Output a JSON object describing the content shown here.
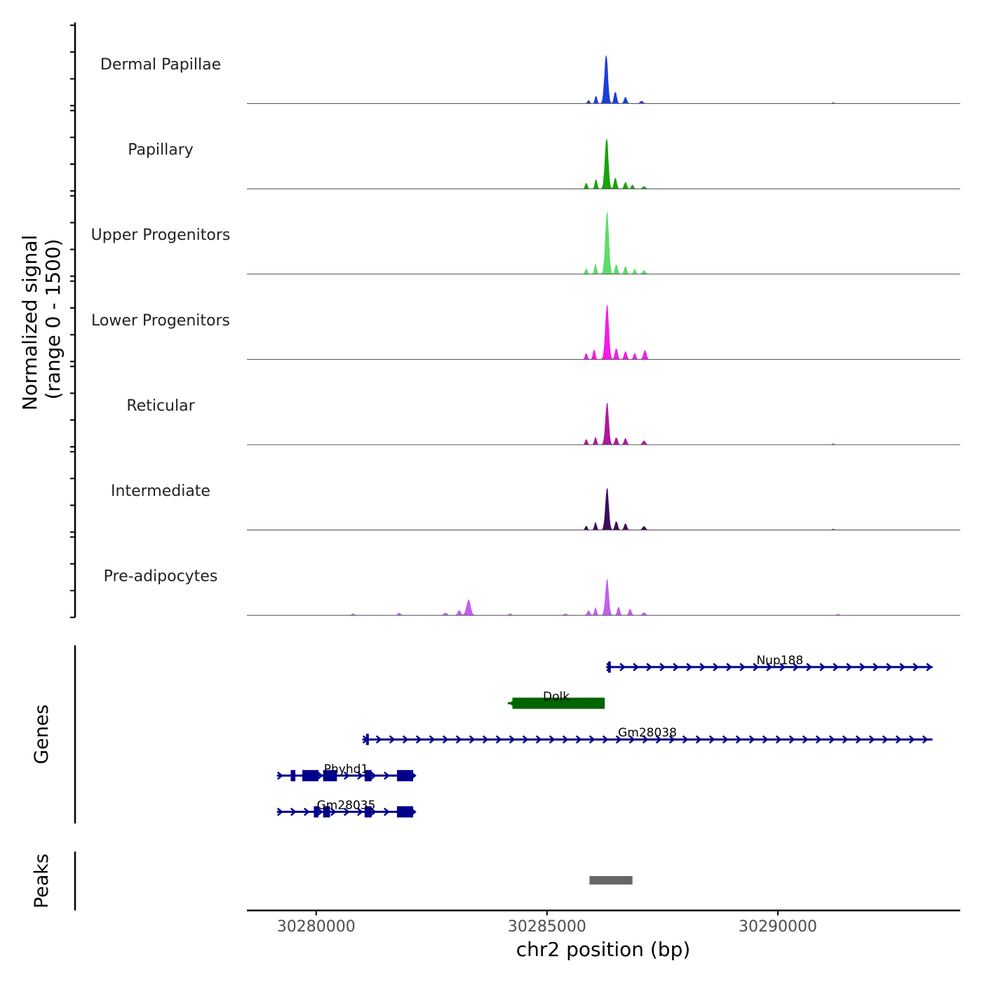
{
  "chart_data": {
    "type": "area",
    "title": "",
    "ylabel_line1": "Normalized signal",
    "ylabel_line2": "(range 0 - 1500)",
    "xlabel": "chr2 position (bp)",
    "chromosome": "chr2",
    "xlim": [
      30278500,
      30293950
    ],
    "ylim": [
      0,
      1500
    ],
    "x_ticks": [
      {
        "value": 30280000,
        "label": "30280000"
      },
      {
        "value": 30285000,
        "label": "30285000"
      },
      {
        "value": 30290000,
        "label": "30290000"
      }
    ],
    "coverage_tracks": [
      {
        "name": "Dermal Papillae",
        "color": "#1a3fd9",
        "peaks": [
          {
            "x": 30286280,
            "y": 1200,
            "w": 90
          },
          {
            "x": 30286480,
            "y": 300,
            "w": 70
          },
          {
            "x": 30286060,
            "y": 180,
            "w": 60
          },
          {
            "x": 30286700,
            "y": 160,
            "w": 70
          },
          {
            "x": 30285900,
            "y": 80,
            "w": 60
          },
          {
            "x": 30287050,
            "y": 60,
            "w": 80
          },
          {
            "x": 30291200,
            "y": 20,
            "w": 60
          }
        ]
      },
      {
        "name": "Papillary",
        "color": "#16a30a",
        "peaks": [
          {
            "x": 30286290,
            "y": 1230,
            "w": 90
          },
          {
            "x": 30286480,
            "y": 280,
            "w": 70
          },
          {
            "x": 30286060,
            "y": 230,
            "w": 60
          },
          {
            "x": 30285850,
            "y": 140,
            "w": 60
          },
          {
            "x": 30286700,
            "y": 160,
            "w": 70
          },
          {
            "x": 30286850,
            "y": 100,
            "w": 60
          },
          {
            "x": 30287100,
            "y": 60,
            "w": 80
          }
        ]
      },
      {
        "name": "Upper Progenitors",
        "color": "#5ddc6a",
        "peaks": [
          {
            "x": 30286300,
            "y": 1480,
            "w": 95
          },
          {
            "x": 30286050,
            "y": 240,
            "w": 60
          },
          {
            "x": 30285850,
            "y": 130,
            "w": 60
          },
          {
            "x": 30286500,
            "y": 240,
            "w": 70
          },
          {
            "x": 30286700,
            "y": 190,
            "w": 70
          },
          {
            "x": 30286900,
            "y": 120,
            "w": 60
          },
          {
            "x": 30287100,
            "y": 90,
            "w": 80
          }
        ]
      },
      {
        "name": "Lower Progenitors",
        "color": "#f21be7",
        "peaks": [
          {
            "x": 30286300,
            "y": 1300,
            "w": 95
          },
          {
            "x": 30285850,
            "y": 150,
            "w": 60
          },
          {
            "x": 30286020,
            "y": 250,
            "w": 60
          },
          {
            "x": 30286500,
            "y": 280,
            "w": 70
          },
          {
            "x": 30286700,
            "y": 200,
            "w": 70
          },
          {
            "x": 30286900,
            "y": 150,
            "w": 60
          },
          {
            "x": 30287120,
            "y": 220,
            "w": 80
          }
        ]
      },
      {
        "name": "Reticular",
        "color": "#b0179d",
        "peaks": [
          {
            "x": 30286300,
            "y": 1000,
            "w": 90
          },
          {
            "x": 30285850,
            "y": 130,
            "w": 60
          },
          {
            "x": 30286050,
            "y": 180,
            "w": 60
          },
          {
            "x": 30286500,
            "y": 180,
            "w": 70
          },
          {
            "x": 30286700,
            "y": 160,
            "w": 70
          },
          {
            "x": 30287100,
            "y": 100,
            "w": 80
          },
          {
            "x": 30291200,
            "y": 20,
            "w": 60
          }
        ]
      },
      {
        "name": "Intermediate",
        "color": "#3b0c5e",
        "peaks": [
          {
            "x": 30286300,
            "y": 1000,
            "w": 90
          },
          {
            "x": 30285850,
            "y": 100,
            "w": 60
          },
          {
            "x": 30286050,
            "y": 180,
            "w": 60
          },
          {
            "x": 30286500,
            "y": 220,
            "w": 70
          },
          {
            "x": 30286700,
            "y": 160,
            "w": 70
          },
          {
            "x": 30287100,
            "y": 90,
            "w": 80
          },
          {
            "x": 30291200,
            "y": 20,
            "w": 60
          }
        ]
      },
      {
        "name": "Pre-adipocytes",
        "color": "#c25ef0",
        "peaks": [
          {
            "x": 30286300,
            "y": 860,
            "w": 90
          },
          {
            "x": 30283300,
            "y": 380,
            "w": 110
          },
          {
            "x": 30283100,
            "y": 120,
            "w": 80
          },
          {
            "x": 30282800,
            "y": 60,
            "w": 80
          },
          {
            "x": 30281800,
            "y": 60,
            "w": 70
          },
          {
            "x": 30280800,
            "y": 40,
            "w": 70
          },
          {
            "x": 30285900,
            "y": 120,
            "w": 70
          },
          {
            "x": 30286050,
            "y": 180,
            "w": 60
          },
          {
            "x": 30286550,
            "y": 200,
            "w": 70
          },
          {
            "x": 30286800,
            "y": 150,
            "w": 70
          },
          {
            "x": 30287100,
            "y": 70,
            "w": 80
          },
          {
            "x": 30284200,
            "y": 40,
            "w": 70
          },
          {
            "x": 30285400,
            "y": 40,
            "w": 70
          },
          {
            "x": 30291300,
            "y": 30,
            "w": 60
          }
        ]
      }
    ],
    "genes_track_label": "Genes",
    "genes": [
      {
        "name": "Nup188",
        "color": "#00008b",
        "strand": "+",
        "row": 0,
        "start": 30286280,
        "end": 30293350,
        "exons": [
          [
            30286320,
            30286380
          ]
        ],
        "arrows": true
      },
      {
        "name": "Dolk",
        "color": "#006400",
        "strand": "-",
        "row": 1,
        "start": 30284150,
        "end": 30286250,
        "exons": [
          [
            30284250,
            30286250
          ]
        ],
        "arrows": false
      },
      {
        "name": "Gm28038",
        "color": "#00008b",
        "strand": "+",
        "row": 2,
        "start": 30281000,
        "end": 30293350,
        "exons": [
          [
            30281080,
            30281140
          ]
        ],
        "arrows": true
      },
      {
        "name": "Phyhd1",
        "color": "#00008b",
        "strand": "+",
        "row": 3,
        "start": 30279150,
        "end": 30282150,
        "exons": [
          [
            30279450,
            30279550
          ],
          [
            30279700,
            30280050
          ],
          [
            30280150,
            30280450
          ],
          [
            30281050,
            30281200
          ],
          [
            30281750,
            30282100
          ]
        ],
        "arrows": true
      },
      {
        "name": "Gm28035",
        "color": "#00008b",
        "strand": "+",
        "row": 4,
        "start": 30279150,
        "end": 30282150,
        "exons": [
          [
            30279950,
            30280050
          ],
          [
            30280150,
            30280300
          ],
          [
            30281050,
            30281200
          ],
          [
            30281750,
            30282100
          ]
        ],
        "arrows": true
      }
    ],
    "peaks_track_label": "Peaks",
    "called_peaks": [
      {
        "start": 30285920,
        "end": 30286850,
        "color": "#666666"
      }
    ]
  }
}
